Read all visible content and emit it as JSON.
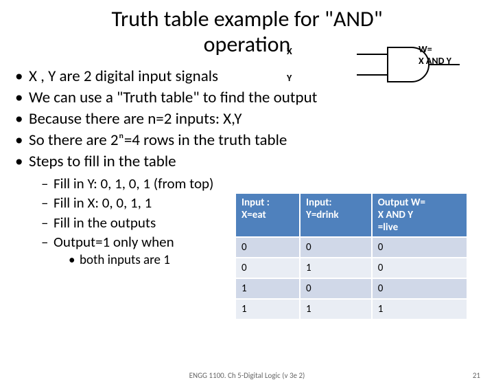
{
  "title_line1": "Truth table example for \"AND\"",
  "title_line2": "operation",
  "gate": {
    "x": "X",
    "y": "Y",
    "w_line1": "W=",
    "w_line2": "X AND Y"
  },
  "bullets": [
    "X , Y are 2 digital input signals",
    "We can use a \"Truth table\" to find the output",
    "Because there are n=2 inputs: X,Y",
    "So there are 2ⁿ=4 rows in the  truth table",
    "Steps to fill in the table"
  ],
  "sub_bullets": [
    "Fill in Y: 0, 1, 0, 1 (from top)",
    "Fill in X: 0, 0, 1, 1",
    "Fill in the outputs",
    "Output=1 only when"
  ],
  "sub_sub": [
    "both inputs are 1"
  ],
  "table": {
    "headers": [
      "Input :\nX=eat",
      "Input:\nY=drink",
      "Output W=\nX AND Y\n=live"
    ],
    "rows": [
      [
        "0",
        "0",
        "0"
      ],
      [
        "0",
        "1",
        "0"
      ],
      [
        "1",
        "0",
        "0"
      ],
      [
        "1",
        "1",
        "1"
      ]
    ],
    "header_bg": "#4f81bd",
    "header_fg": "#ffffff",
    "row_odd_bg": "#d0d8e8",
    "row_even_bg": "#e9edf4"
  },
  "footer": {
    "text": "ENGG 1100. Ch 5-Digital Logic (v 3e 2)",
    "page": "21"
  }
}
